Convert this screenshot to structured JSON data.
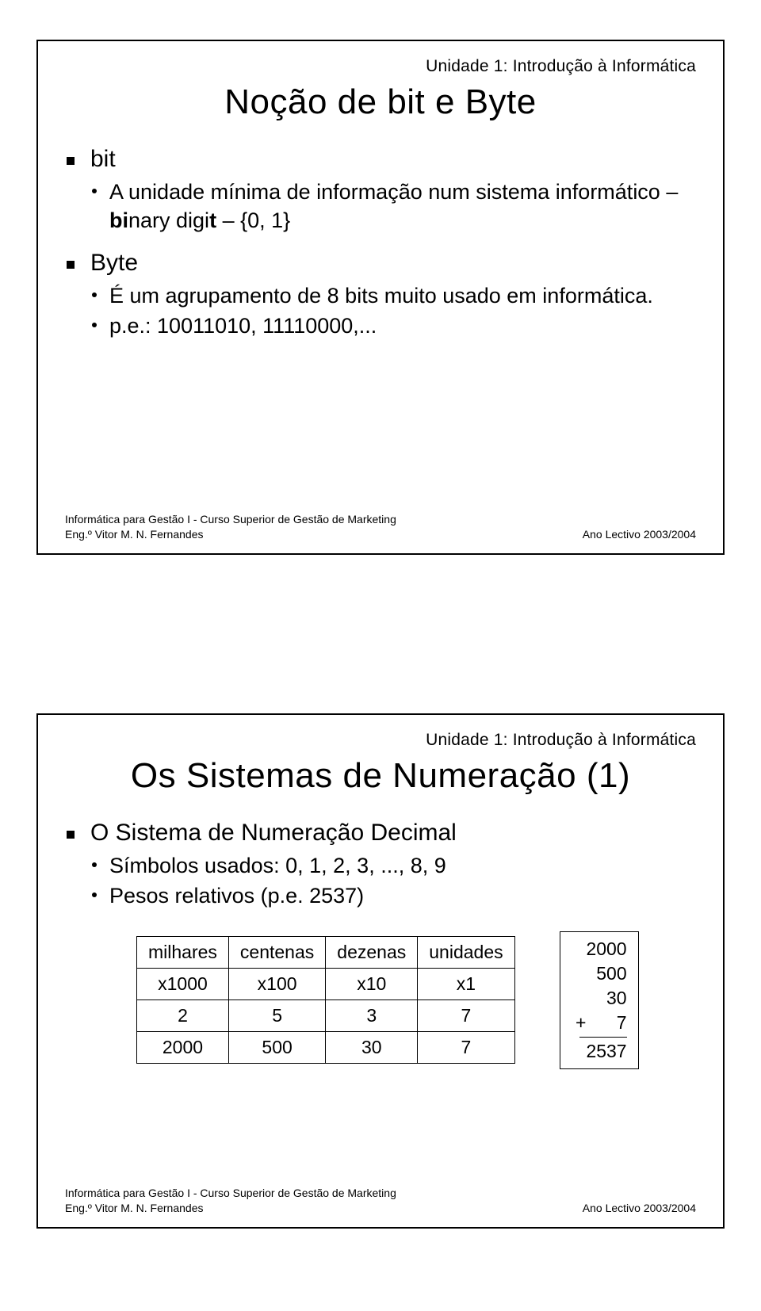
{
  "unit_label": "Unidade 1: Introdução à Informática",
  "footer": {
    "line1": "Informática para Gestão I - Curso Superior de Gestão de Marketing",
    "line2_left": "Eng.º Vitor M. N. Fernandes",
    "line2_right": "Ano Lectivo 2003/2004"
  },
  "slide1": {
    "title": "Noção de bit e Byte",
    "b1_label": "bit",
    "b1_sub_pre": "A unidade mínima de informação num sistema informático – ",
    "b1_sub_bold1": "bi",
    "b1_sub_mid": "nary digi",
    "b1_sub_bold2": "t",
    "b1_sub_post": " – {0, 1}",
    "b2_label": "Byte",
    "b2_sub1": "É um agrupamento de 8 bits muito usado em informática.",
    "b2_sub2": "p.e.: 10011010, 11110000,..."
  },
  "slide2": {
    "title": "Os Sistemas de Numeração (1)",
    "b1_label": "O Sistema de Numeração Decimal",
    "b1_sub1": "Símbolos usados: 0, 1, 2, 3, ..., 8, 9",
    "b1_sub2": "Pesos relativos (p.e. 2537)",
    "table": {
      "headers": [
        "milhares",
        "centenas",
        "dezenas",
        "unidades"
      ],
      "weights": [
        "x1000",
        "x100",
        "x10",
        "x1"
      ],
      "digits": [
        "2",
        "5",
        "3",
        "7"
      ],
      "products": [
        "2000",
        "500",
        "30",
        "7"
      ]
    },
    "sum": {
      "l1": "2000",
      "l2": "500",
      "l3": "30",
      "l4": "+      7",
      "total": "2537"
    }
  }
}
